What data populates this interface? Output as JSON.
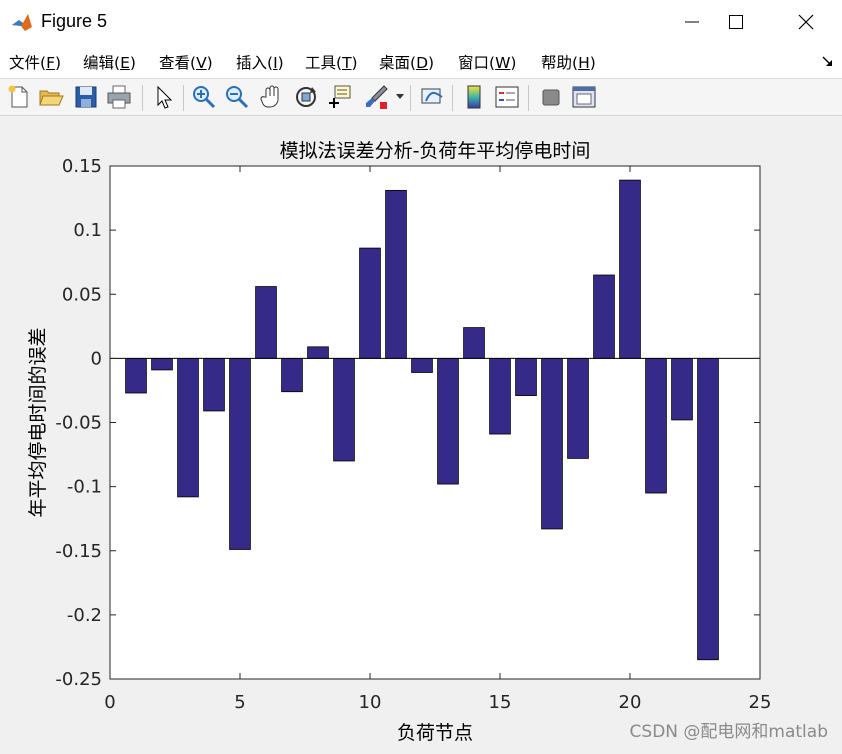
{
  "window": {
    "title": "Figure 5"
  },
  "menu": {
    "items": [
      {
        "label": "文件(",
        "key": "F",
        "tail": ")"
      },
      {
        "label": "编辑(",
        "key": "E",
        "tail": ")"
      },
      {
        "label": "查看(",
        "key": "V",
        "tail": ")"
      },
      {
        "label": "插入(",
        "key": "I",
        "tail": ")"
      },
      {
        "label": "工具(",
        "key": "T",
        "tail": ")"
      },
      {
        "label": "桌面(",
        "key": "D",
        "tail": ")"
      },
      {
        "label": "窗口(",
        "key": "W",
        "tail": ")"
      },
      {
        "label": "帮助(",
        "key": "H",
        "tail": ")"
      }
    ]
  },
  "toolbar": {
    "icons": [
      "new-figure-icon",
      "open-file-icon",
      "save-icon",
      "print-icon",
      "select-arrow-icon",
      "zoom-in-icon",
      "zoom-out-icon",
      "pan-hand-icon",
      "rotate-3d-icon",
      "data-cursor-icon",
      "brush-icon",
      "link-plot-icon",
      "colorbar-icon",
      "legend-icon",
      "hide-plot-tools-icon",
      "show-plot-tools-icon"
    ]
  },
  "chart_data": {
    "type": "bar",
    "title": "模拟法误差分析-负荷年平均停电时间",
    "xlabel": "负荷节点",
    "ylabel": "年平均停电时间的误差",
    "x": [
      1,
      2,
      3,
      4,
      5,
      6,
      7,
      8,
      9,
      10,
      11,
      12,
      13,
      14,
      15,
      16,
      17,
      18,
      19,
      20,
      21,
      22,
      23
    ],
    "values": [
      -0.027,
      -0.009,
      -0.108,
      -0.041,
      -0.149,
      0.056,
      -0.026,
      0.009,
      -0.08,
      0.086,
      0.131,
      -0.011,
      -0.098,
      0.024,
      -0.059,
      -0.029,
      -0.133,
      -0.078,
      0.065,
      0.139,
      -0.105,
      -0.048,
      -0.235
    ],
    "xlim": [
      0,
      25
    ],
    "ylim": [
      -0.25,
      0.15
    ],
    "xticks": [
      "0",
      "5",
      "10",
      "15",
      "20",
      "25"
    ],
    "yticks": [
      "0.15",
      "0.1",
      "0.05",
      "0",
      "-0.05",
      "-0.1",
      "-0.15",
      "-0.2",
      "-0.25"
    ],
    "bar_color": "#352a87",
    "grid": false
  },
  "watermark": "CSDN @配电网和matlab"
}
